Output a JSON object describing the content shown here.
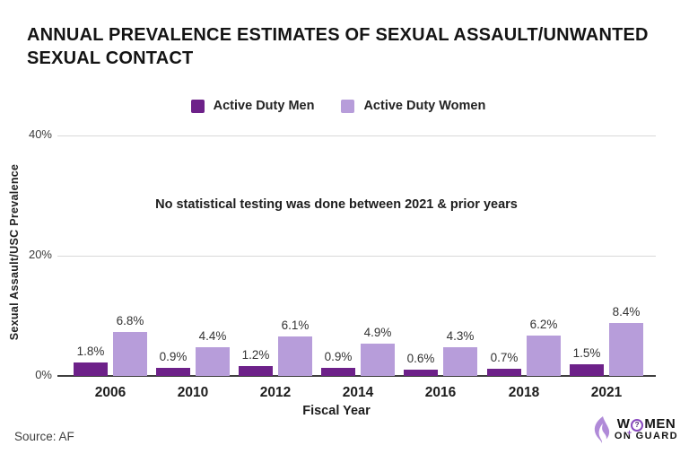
{
  "title": {
    "line1": "ANNUAL PREVALENCE ESTIMATES OF SEXUAL ASSAULT/UNWANTED",
    "line2": "SEXUAL CONTACT"
  },
  "legend": [
    {
      "label": "Active Duty Men",
      "color": "#6d2189"
    },
    {
      "label": "Active Duty Women",
      "color": "#b79dda"
    }
  ],
  "annotation": "No statistical testing was done between 2021 & prior years",
  "chart_data": {
    "type": "bar",
    "categories": [
      "2006",
      "2010",
      "2012",
      "2014",
      "2016",
      "2018",
      "2021"
    ],
    "series": [
      {
        "name": "Active Duty Men",
        "color": "#6d2189",
        "values": [
          1.8,
          0.9,
          1.2,
          0.9,
          0.6,
          0.7,
          1.5
        ]
      },
      {
        "name": "Active Duty Women",
        "color": "#b79dda",
        "values": [
          6.8,
          4.4,
          6.1,
          4.9,
          4.3,
          6.2,
          8.4
        ]
      }
    ],
    "value_suffix": "%",
    "title": "ANNUAL PREVALENCE ESTIMATES OF SEXUAL ASSAULT/UNWANTED SEXUAL CONTACT",
    "xlabel": "Fiscal Year",
    "ylabel": "Sexual Assault/USC Prevalence",
    "yticks": [
      {
        "label": "0%",
        "value": 0
      },
      {
        "label": "20%",
        "value": 20
      },
      {
        "label": "40%",
        "value": 40
      }
    ],
    "ylim": [
      0,
      40
    ],
    "grid": true,
    "legend_position": "top"
  },
  "xlabel": "Fiscal Year",
  "ylabel": "Sexual Assault/USC Prevalence",
  "source": "Source: AF",
  "logo": {
    "word1_start": "W",
    "emblem": "?",
    "word1_end": "MEN",
    "line2": "ON GUARD",
    "accent_color": "#8a4bbf",
    "icon_color": "#b08ad8"
  },
  "colors": {
    "men_bar": "#6d2189",
    "women_bar": "#b79dda",
    "gridline": "#d9d9d9",
    "axis": "#3f3f3f"
  }
}
